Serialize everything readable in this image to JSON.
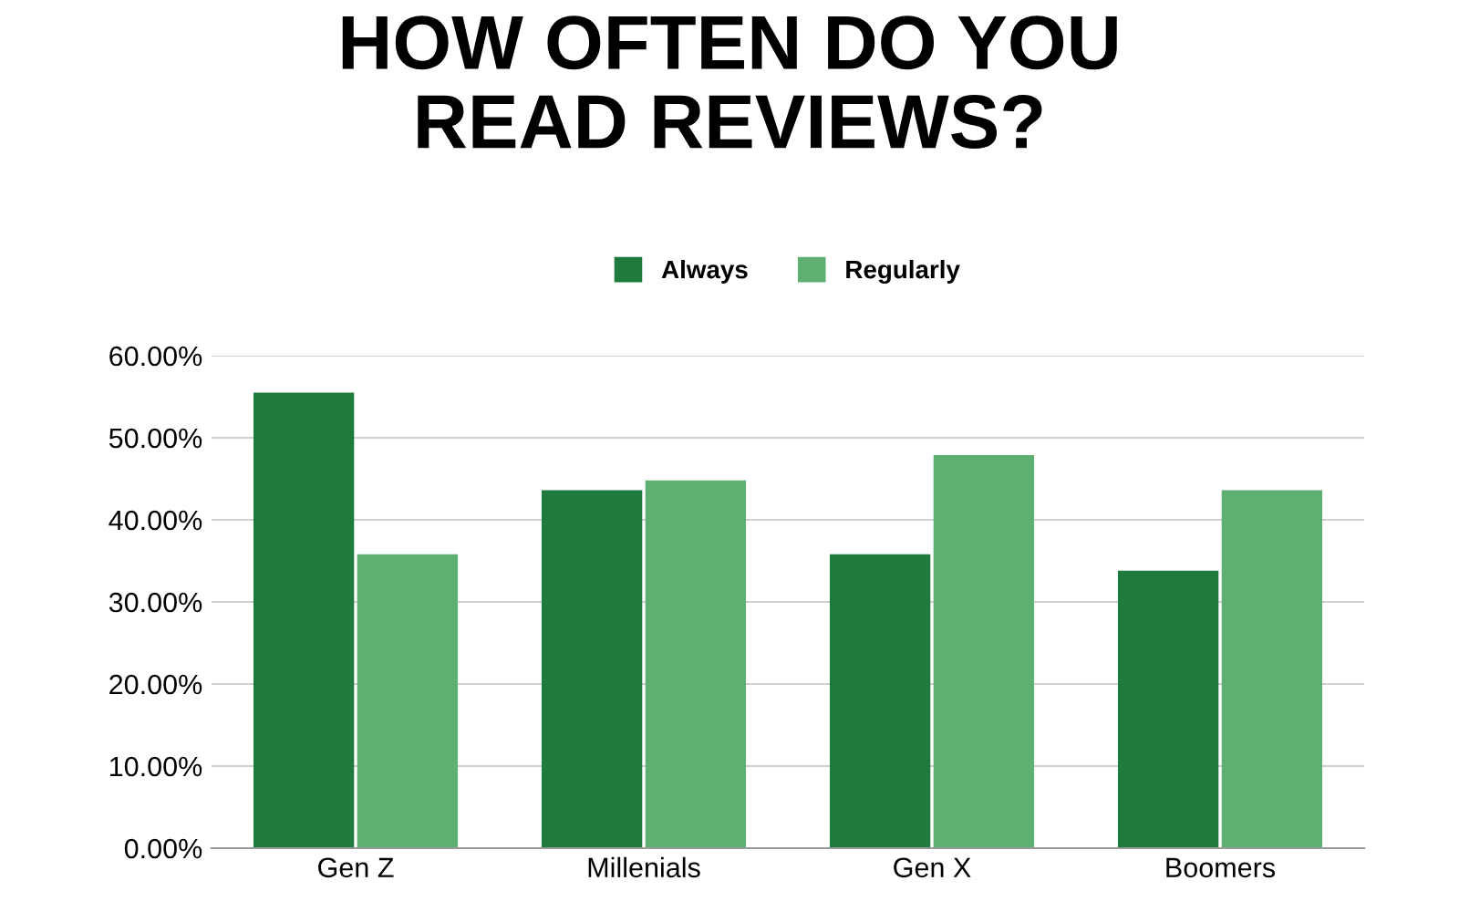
{
  "chart_data": {
    "type": "bar",
    "title": "HOW OFTEN DO YOU\nREAD REVIEWS?",
    "categories": [
      "Gen Z",
      "Millenials",
      "Gen X",
      "Boomers"
    ],
    "series": [
      {
        "name": "Always",
        "color": "#1f7a3d",
        "values": [
          55.5,
          43.6,
          35.8,
          33.8
        ]
      },
      {
        "name": "Regularly",
        "color": "#5fae72",
        "values": [
          35.8,
          44.8,
          47.9,
          43.6
        ]
      }
    ],
    "ylim": [
      0,
      60
    ],
    "yticks": [
      {
        "value": 0,
        "label": "0.00%"
      },
      {
        "value": 10,
        "label": "10.00%"
      },
      {
        "value": 20,
        "label": "20.00%"
      },
      {
        "value": 30,
        "label": "30.00%"
      },
      {
        "value": 40,
        "label": "40.00%"
      },
      {
        "value": 50,
        "label": "50.00%"
      },
      {
        "value": 60,
        "label": "60.00%"
      }
    ],
    "grid": "y",
    "legend": "top"
  }
}
